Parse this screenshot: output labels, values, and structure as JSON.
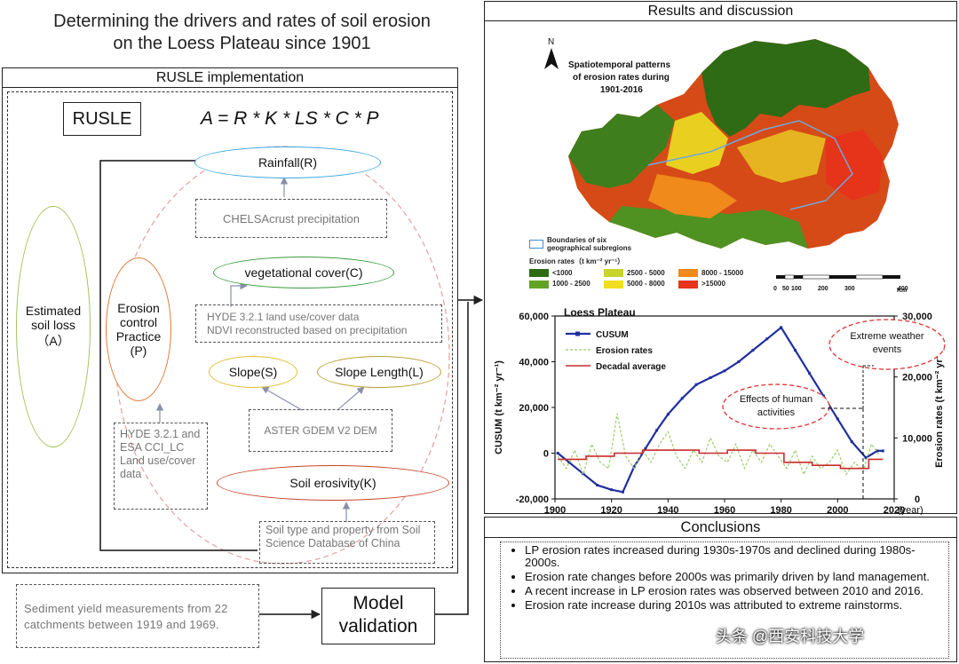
{
  "title_line1": "Determining the drivers and rates of  soil erosion",
  "title_line2": "on the Loess Plateau since 1901",
  "rusle": {
    "header": "RUSLE  implementation",
    "box_label": "RUSLE",
    "formula": "A = R * K * LS * C * P",
    "estimated": "Estimated soil loss （A）",
    "practice": "Erosion control Practice (P)",
    "rainfall": "Rainfall(R)",
    "chelsa": "CHELSAcrust  precipitation",
    "veg": "vegetational cover(C)",
    "hyde_line1": "HYDE 3.2.1 land use/cover data",
    "hyde_line2": "NDVI reconstructed based on precipitation",
    "slope": "Slope(S)",
    "slope_length": "Slope Length(L)",
    "aster": "ASTER GDEM V2 DEM",
    "hyde_esa": "HYDE 3.2.1 and ESA CCI_LC Land use/cover data",
    "soil_k": "Soil erosivity(K)",
    "soil_db": "Soil type and property from Soil Science Database of China"
  },
  "sediment": "Sediment yield measurements from 22 catchments between 1919 and 1969.",
  "validation": "Model validation",
  "results": {
    "header": "Results and discussion",
    "map_title_1": "Spatiotemporal  patterns",
    "map_title_2": "of erosion rates during",
    "map_title_3": "1901-2016",
    "north": "N",
    "boundary_1": "Boundaries of six",
    "boundary_2": "geographical  subregions",
    "legend_title": "Erosion  rates（t km⁻² yr⁻¹）",
    "legend": [
      {
        "label": "<1000",
        "color": "#2f6b14"
      },
      {
        "label": "2500 - 5000",
        "color": "#c7d42a"
      },
      {
        "label": "8000 - 15000",
        "color": "#f08a1a"
      },
      {
        "label": "1000 - 2500",
        "color": "#63a323"
      },
      {
        "label": "5000 - 8000",
        "color": "#f2de20"
      },
      {
        "label": ">15000",
        "color": "#e5341a"
      }
    ],
    "scale_labels": [
      "0",
      "50",
      "100",
      "200",
      "300",
      "400"
    ],
    "scale_unit": "Km"
  },
  "chart_data": {
    "type": "line",
    "title": "Loess Plateau",
    "xlabel": "(year)",
    "ylabel": "CUSUM  (t km⁻² yr⁻¹)",
    "y2label": "Erosion rates (t km⁻² yr⁻¹)",
    "xlim": [
      1900,
      2020
    ],
    "ylim": [
      -20000,
      60000
    ],
    "y2lim": [
      0,
      30000
    ],
    "x_ticks": [
      "1900",
      "1920",
      "1940",
      "1960",
      "1980",
      "2000",
      "2020"
    ],
    "y_ticks": [
      "-20,000",
      "0",
      "20,000",
      "40,000",
      "60,000"
    ],
    "y2_ticks": [
      "0",
      "10,000",
      "20,000",
      "30,000"
    ],
    "legend": [
      "CUSUM",
      "Erosion rates",
      "Decadal average"
    ],
    "annotations": [
      "Effects of human activities",
      "Extreme weather events"
    ],
    "series": [
      {
        "name": "CUSUM",
        "color": "#1f2f9e",
        "axis": "left",
        "x": [
          1901,
          1905,
          1910,
          1915,
          1920,
          1924,
          1928,
          1932,
          1936,
          1940,
          1945,
          1950,
          1955,
          1960,
          1965,
          1970,
          1975,
          1980,
          1985,
          1990,
          1995,
          2000,
          2005,
          2010,
          2014,
          2016
        ],
        "y": [
          0,
          -4000,
          -9000,
          -14000,
          -16000,
          -17000,
          -6000,
          2000,
          10000,
          17000,
          24000,
          30000,
          33000,
          36000,
          40000,
          45000,
          50000,
          55000,
          45000,
          35000,
          25000,
          15000,
          5000,
          -2000,
          1000,
          1000
        ]
      },
      {
        "name": "Erosion rates",
        "color": "#9ccc6a",
        "axis": "right",
        "x": [
          1901,
          1904,
          1907,
          1910,
          1913,
          1916,
          1919,
          1922,
          1925,
          1928,
          1931,
          1934,
          1937,
          1940,
          1943,
          1946,
          1949,
          1952,
          1955,
          1958,
          1961,
          1964,
          1967,
          1970,
          1973,
          1976,
          1979,
          1982,
          1985,
          1988,
          1991,
          1994,
          1997,
          2000,
          2003,
          2006,
          2009,
          2012,
          2015
        ],
        "y": [
          7000,
          5000,
          8000,
          4000,
          9000,
          6000,
          5000,
          14000,
          7000,
          5000,
          8000,
          6000,
          9000,
          11000,
          7000,
          5000,
          8000,
          6000,
          10000,
          7000,
          6000,
          9000,
          5000,
          8000,
          6000,
          9000,
          7000,
          5000,
          8000,
          4000,
          7000,
          5000,
          6000,
          8000,
          4000,
          6000,
          4500,
          9000,
          7000
        ]
      },
      {
        "name": "Decadal average",
        "color": "#cc2a2a",
        "axis": "right",
        "x": [
          1901,
          1911,
          1911,
          1921,
          1921,
          1931,
          1931,
          1941,
          1941,
          1951,
          1951,
          1961,
          1961,
          1971,
          1971,
          1981,
          1981,
          1991,
          1991,
          2001,
          2001,
          2011,
          2011,
          2016
        ],
        "y": [
          6500,
          6500,
          7000,
          7000,
          7500,
          7500,
          8000,
          8000,
          8000,
          8000,
          7500,
          7500,
          8000,
          8000,
          7500,
          7500,
          6000,
          6000,
          5500,
          5500,
          5000,
          5000,
          6500,
          6500
        ]
      }
    ]
  },
  "conclusions": {
    "header": "Conclusions",
    "items": [
      "LP erosion rates increased during 1930s-1970s and declined during 1980s-2000s.",
      "Erosion rate changes before 2000s was primarily driven by land management.",
      "A recent increase in LP erosion rates was observed between 2010 and 2016.",
      "Erosion rate increase during 2010s was attributed to extreme rainstorms."
    ]
  },
  "watermark": "头条 @西安科技大学"
}
